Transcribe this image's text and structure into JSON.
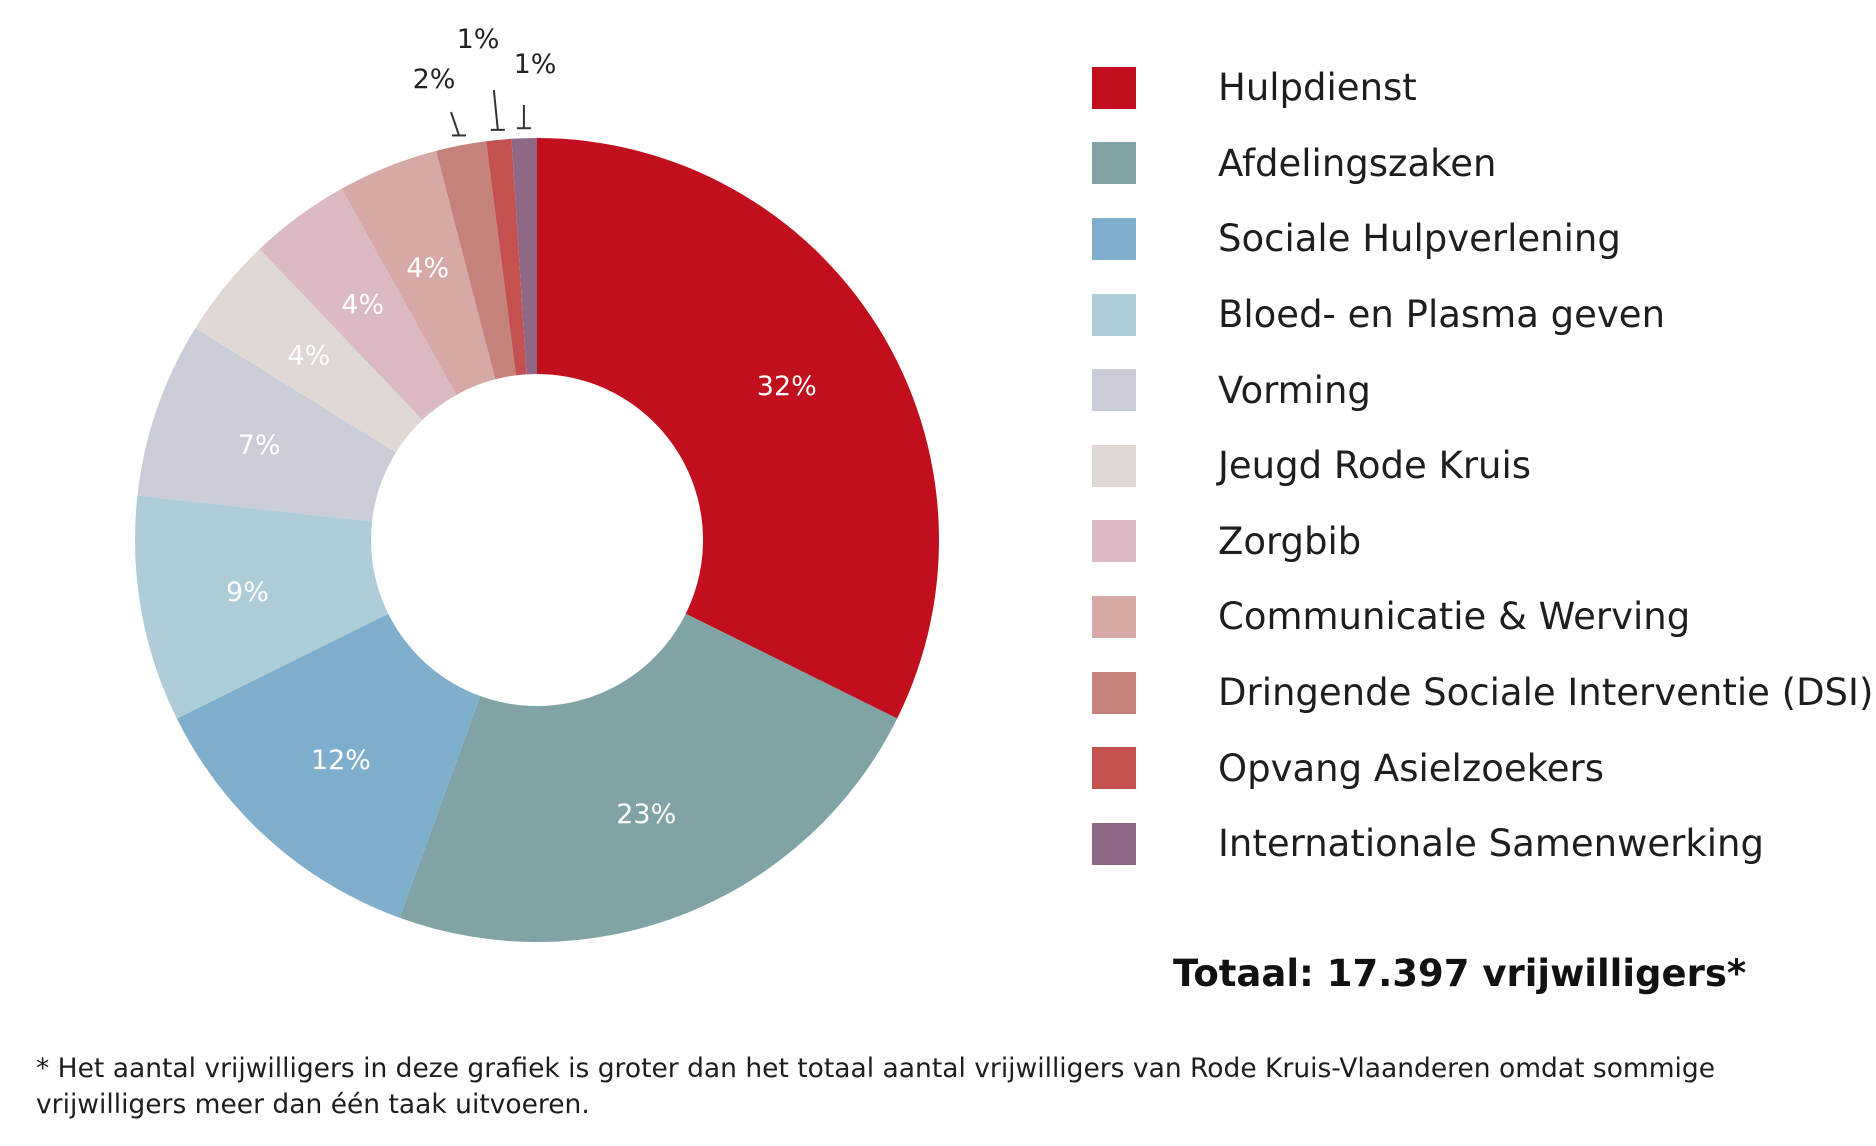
{
  "chart_data": {
    "type": "pie",
    "style": "donut",
    "start": "top, clockwise",
    "slices": [
      {
        "name": "Hulpdienst",
        "value": 32,
        "label": "32%",
        "color": "#c10f1d",
        "label_position": "inside"
      },
      {
        "name": "Afdelingszaken",
        "value": 23,
        "label": "23%",
        "color": "#80a3a6",
        "label_position": "inside"
      },
      {
        "name": "Sociale Hulpverlening",
        "value": 12,
        "label": "12%",
        "color": "#80afcd",
        "label_position": "inside"
      },
      {
        "name": "Bloed- en Plasma geven",
        "value": 9,
        "label": "9%",
        "color": "#adcdd9",
        "label_position": "inside"
      },
      {
        "name": "Vorming",
        "value": 7,
        "label": "7%",
        "color": "#cacdd8",
        "label_position": "inside"
      },
      {
        "name": "Jeugd Rode Kruis",
        "value": 4,
        "label": "4%",
        "color": "#e0d8d5",
        "label_position": "inside"
      },
      {
        "name": "Zorgbib",
        "value": 4,
        "label": "4%",
        "color": "#dbbac4",
        "label_position": "inside"
      },
      {
        "name": "Communicatie & Werving",
        "value": 4,
        "label": "4%",
        "color": "#d6a9a7",
        "label_position": "inside"
      },
      {
        "name": "Dringende Sociale Interventie (DSI)",
        "value": 2,
        "label": "2%",
        "color": "#c6817b",
        "label_position": "outside"
      },
      {
        "name": "Opvang Asielzoekers",
        "value": 1,
        "label": "1%",
        "color": "#c4514f",
        "label_position": "outside"
      },
      {
        "name": "Internationale Samenwerking",
        "value": 1,
        "label": "1%",
        "color": "#8f6886",
        "label_position": "outside"
      }
    ],
    "legend_position": "right"
  },
  "total": "Totaal: 17.397 vrijwilligers*",
  "footnote": "* Het aantal vrijwilligers in deze grafiek is groter dan het totaal aantal vrijwilligers van Rode Kruis-Vlaanderen omdat sommige vrijwilligers meer dan één taak uitvoeren."
}
